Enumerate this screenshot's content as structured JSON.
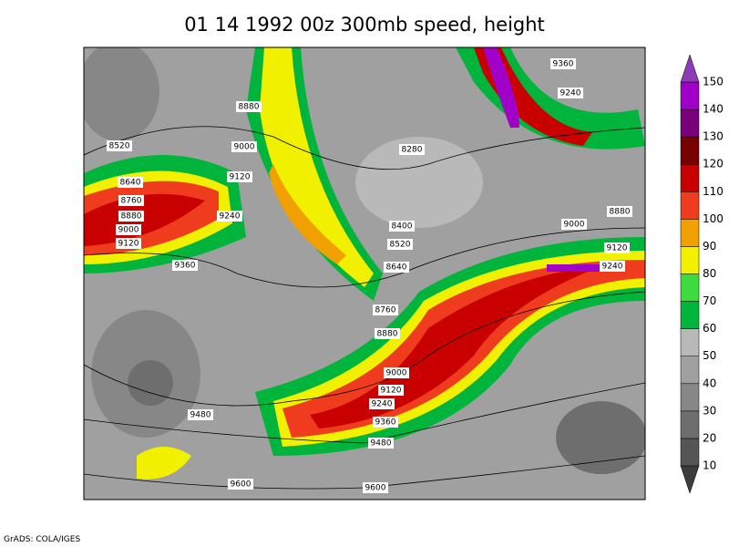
{
  "title": "01 14 1992 00z 300mb speed, height",
  "footer": "GrADS: COLA/IGES",
  "colorbar": {
    "ticks": [
      10,
      20,
      30,
      40,
      50,
      60,
      70,
      80,
      90,
      100,
      110,
      120,
      130,
      140,
      150
    ],
    "colors": [
      "#3c3c3c",
      "#555555",
      "#6e6e6e",
      "#878787",
      "#a0a0a0",
      "#b9b9b9",
      "#00b43c",
      "#3cdc3c",
      "#f0f000",
      "#f0a000",
      "#f03c1e",
      "#c80000",
      "#780000",
      "#780078",
      "#a000c8",
      "#dc32dc",
      "#8c3cb4"
    ]
  },
  "contour_labels": [
    9360,
    9240,
    8880,
    8520,
    9000,
    8280,
    8640,
    9120,
    8760,
    9240,
    8880,
    9000,
    9120,
    8400,
    9000,
    8880,
    8520,
    9120,
    9360,
    8640,
    9240,
    8760,
    8880,
    9000,
    9120,
    9240,
    9360,
    9480,
    9480,
    9600,
    9600
  ]
}
